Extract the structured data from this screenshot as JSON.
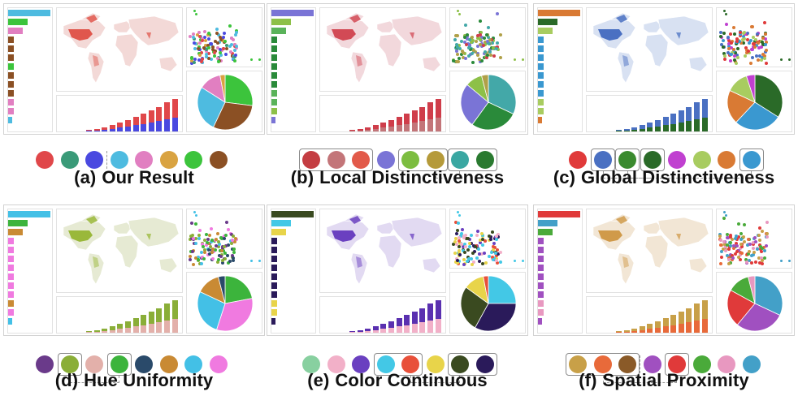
{
  "panels": [
    {
      "letter": "(a)",
      "caption": "Our Result",
      "map_color": "#e0574d",
      "map_bg": "#f3d9d7",
      "left_bars": [
        "#4ebbe0",
        "#3cc43c",
        "#e17fc1",
        "#8b5024",
        "#8b5024",
        "#8b5024",
        "#3cc43c",
        "#8b5024",
        "#8b5024",
        "#8b5024",
        "#e17fc1",
        "#e17fc1",
        "#4ebbe0"
      ],
      "bars_top": "#e0474a",
      "bars_bottom": "#4a49e0",
      "bar_heights": [
        2,
        3,
        5,
        8,
        11,
        14,
        18,
        22,
        26,
        30,
        36,
        40
      ],
      "pie": [
        {
          "value": 27,
          "color": "#3cc43c"
        },
        {
          "value": 30,
          "color": "#8b5024"
        },
        {
          "value": 27,
          "color": "#4ebbe0"
        },
        {
          "value": 13,
          "color": "#e17fc1"
        },
        {
          "value": 3,
          "color": "#d9a341"
        }
      ],
      "scatter_colors": [
        "#8b5024",
        "#3cc43c",
        "#e17fc1",
        "#4ebbe0",
        "#d9a341",
        "#4a49e0",
        "#3a9a78",
        "#e0474a"
      ],
      "palette": [
        "#e0474a",
        "#3a9a78",
        "#4a49e0",
        "#4ebbe0",
        "#e17fc1",
        "#d9a341",
        "#3cc43c",
        "#8b5024"
      ],
      "groups": [],
      "separators": [
        3
      ],
      "connectors": []
    },
    {
      "letter": "(b)",
      "caption": "Local Distinctiveness",
      "map_color": "#d24a55",
      "map_bg": "#f2d8dc",
      "left_bars": [
        "#7a74d6",
        "#8dc048",
        "#5ab35a",
        "#2a8a3a",
        "#2a8a3a",
        "#2a8a3a",
        "#2a8a3a",
        "#2a8a3a",
        "#2a8a3a",
        "#5ab35a",
        "#5ab35a",
        "#8dc048",
        "#7a74d6"
      ],
      "bars_top": "#cf3d4a",
      "bars_bottom": "#c37579",
      "bar_heights": [
        2,
        3,
        5,
        8,
        11,
        14,
        18,
        22,
        26,
        30,
        36,
        40
      ],
      "pie": [
        {
          "value": 32,
          "color": "#43a8a8"
        },
        {
          "value": 28,
          "color": "#2a8a3a"
        },
        {
          "value": 26,
          "color": "#7a74d6"
        },
        {
          "value": 10,
          "color": "#8dc048"
        },
        {
          "value": 4,
          "color": "#b0a048"
        }
      ],
      "scatter_colors": [
        "#2a8a3a",
        "#8dc048",
        "#7a74d6",
        "#43a8a8",
        "#b0a048",
        "#cf3d4a"
      ],
      "palette": [
        "#c43d42",
        "#c37579",
        "#e25a4a",
        "#7a74d6",
        "#7cbd40",
        "#b59a3a",
        "#3aa7a2",
        "#2a7a30"
      ],
      "groups": [
        [
          0,
          2
        ],
        [
          4,
          5
        ],
        [
          6,
          7
        ]
      ],
      "separators": [],
      "connectors": [
        [
          5,
          6
        ]
      ]
    },
    {
      "letter": "(c)",
      "caption": "Global Distinctiveness",
      "map_color": "#4a70c2",
      "map_bg": "#d8e1f2",
      "left_bars": [
        "#d97a34",
        "#2a6a28",
        "#a8cc60",
        "#3a98d0",
        "#3a98d0",
        "#3a98d0",
        "#3a98d0",
        "#3a98d0",
        "#3a98d0",
        "#3a98d0",
        "#a8cc60",
        "#a8cc60",
        "#d97a34"
      ],
      "bars_top": "#4a70c2",
      "bars_bottom": "#2a6a28",
      "bar_heights": [
        2,
        3,
        5,
        8,
        11,
        14,
        18,
        22,
        26,
        30,
        36,
        40
      ],
      "pie": [
        {
          "value": 34,
          "color": "#2a6a28"
        },
        {
          "value": 28,
          "color": "#3a98d0"
        },
        {
          "value": 20,
          "color": "#d97a34"
        },
        {
          "value": 13,
          "color": "#a8cc60"
        },
        {
          "value": 5,
          "color": "#c040d0"
        }
      ],
      "scatter_colors": [
        "#3a98d0",
        "#2a6a28",
        "#c040d0",
        "#a8cc60",
        "#d97a34",
        "#4a70c2",
        "#e03a3a"
      ],
      "palette": [
        "#e03a3a",
        "#4a70c2",
        "#3a8a2e",
        "#2a6a28",
        "#c040d0",
        "#a8cc60",
        "#d97a34",
        "#3a98d0"
      ],
      "groups": [
        [
          1,
          1
        ],
        [
          2,
          2
        ],
        [
          3,
          3
        ],
        [
          7,
          7
        ]
      ],
      "separators": [
        2
      ],
      "connectors": [
        [
          1,
          3
        ],
        [
          2,
          7
        ]
      ]
    },
    {
      "letter": "(d)",
      "caption": "Hue Uniformity",
      "map_color": "#9ab83a",
      "map_bg": "#e6ead3",
      "left_bars": [
        "#43c0e6",
        "#3cb43c",
        "#c98a34",
        "#f07ae0",
        "#f07ae0",
        "#f07ae0",
        "#f07ae0",
        "#f07ae0",
        "#f07ae0",
        "#f07ae0",
        "#c98a34",
        "#f07ae0",
        "#43c0e6"
      ],
      "bars_top": "#8aae38",
      "bars_bottom": "#e3b0aa",
      "bar_heights": [
        2,
        3,
        5,
        8,
        11,
        14,
        18,
        22,
        26,
        30,
        36,
        40
      ],
      "pie": [
        {
          "value": 22,
          "color": "#3cb43c"
        },
        {
          "value": 33,
          "color": "#f07ae0"
        },
        {
          "value": 27,
          "color": "#43c0e6"
        },
        {
          "value": 14,
          "color": "#c98a34"
        },
        {
          "value": 4,
          "color": "#2a4a6a"
        }
      ],
      "scatter_colors": [
        "#f07ae0",
        "#43c0e6",
        "#3cb43c",
        "#c98a34",
        "#2a4a6a",
        "#6a3a8a",
        "#8aae38"
      ],
      "palette": [
        "#6a3a8a",
        "#8aae38",
        "#e3b0aa",
        "#3cb43c",
        "#2a4a6a",
        "#c98a34",
        "#43c0e6",
        "#f07ae0"
      ],
      "groups": [
        [
          1,
          1
        ],
        [
          3,
          3
        ]
      ],
      "separators": [],
      "connectors": [
        [
          1,
          3
        ]
      ]
    },
    {
      "letter": "(e)",
      "caption": "Color Continuous",
      "map_color": "#6a40c0",
      "map_bg": "#e2daf2",
      "left_bars": [
        "#3a4a20",
        "#43c8e6",
        "#e8d44a",
        "#2a1a5a",
        "#2a1a5a",
        "#2a1a5a",
        "#2a1a5a",
        "#2a1a5a",
        "#2a1a5a",
        "#2a1a5a",
        "#e8d44a",
        "#e8d44a",
        "#2a1a5a"
      ],
      "bars_top": "#5a30b0",
      "bars_bottom": "#f2b0c8",
      "bar_heights": [
        2,
        3,
        5,
        8,
        11,
        14,
        18,
        22,
        26,
        30,
        36,
        40
      ],
      "pie": [
        {
          "value": 25,
          "color": "#43c8e6"
        },
        {
          "value": 33,
          "color": "#2a1a5a"
        },
        {
          "value": 27,
          "color": "#3a4a20"
        },
        {
          "value": 12,
          "color": "#e8d44a"
        },
        {
          "value": 3,
          "color": "#e8503a"
        }
      ],
      "scatter_colors": [
        "#2a1a5a",
        "#43c8e6",
        "#e8d44a",
        "#3a4a20",
        "#f2b0c8",
        "#6a40c0",
        "#e8503a"
      ],
      "palette": [
        "#88d0a0",
        "#f2b0c8",
        "#6a40c0",
        "#43c8e6",
        "#e8503a",
        "#e8d44a",
        "#3a4a20",
        "#2a1a5a"
      ],
      "groups": [
        [
          3,
          4
        ],
        [
          6,
          7
        ]
      ],
      "separators": [],
      "connectors": [
        [
          4,
          6
        ]
      ]
    },
    {
      "letter": "(f)",
      "caption": "Spatial Proximity",
      "map_color": "#d09a4a",
      "map_bg": "#f2e6d5",
      "left_bars": [
        "#e03a3a",
        "#43a0c8",
        "#4aaa3a",
        "#a050c0",
        "#a050c0",
        "#a050c0",
        "#a050c0",
        "#a050c0",
        "#a050c0",
        "#a050c0",
        "#e898c0",
        "#e898c0",
        "#a050c0"
      ],
      "bars_top": "#c8a048",
      "bars_bottom": "#e86a3a",
      "bar_heights": [
        2,
        3,
        5,
        8,
        11,
        14,
        18,
        22,
        26,
        30,
        36,
        40
      ],
      "pie": [
        {
          "value": 32,
          "color": "#43a0c8"
        },
        {
          "value": 29,
          "color": "#a050c0"
        },
        {
          "value": 22,
          "color": "#e03a3a"
        },
        {
          "value": 13,
          "color": "#4aaa3a"
        },
        {
          "value": 4,
          "color": "#e898c0"
        }
      ],
      "scatter_colors": [
        "#a050c0",
        "#43a0c8",
        "#e898c0",
        "#e03a3a",
        "#4aaa3a",
        "#c8a048",
        "#e86a3a"
      ],
      "palette": [
        "#c8a048",
        "#e86a3a",
        "#8a5a28",
        "#a050c0",
        "#e03a3a",
        "#4aaa3a",
        "#e898c0",
        "#43a0c8"
      ],
      "groups": [
        [
          0,
          2
        ],
        [
          4,
          4
        ]
      ],
      "separators": [
        3
      ],
      "connectors": [
        [
          1,
          4
        ]
      ]
    }
  ]
}
